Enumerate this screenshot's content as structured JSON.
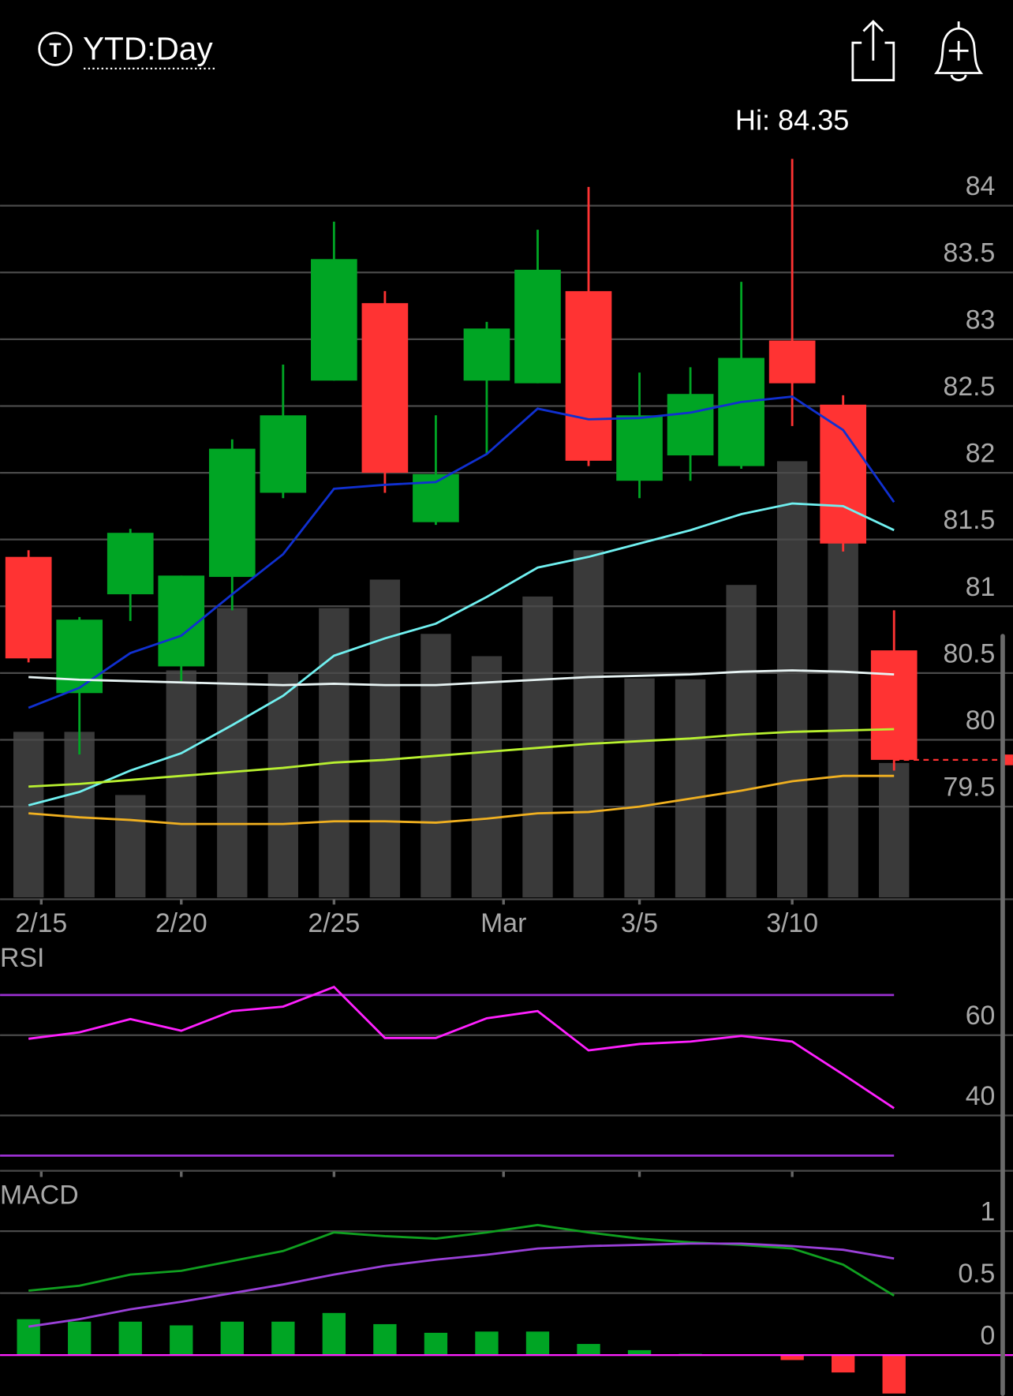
{
  "header": {
    "icon_label": "T",
    "title": "YTD:Day"
  },
  "chart_data": [
    {
      "type": "candlestick",
      "annotation": "Hi: 84.35",
      "up_color": "#00a524",
      "down_color": "#ff3333",
      "open": [
        81.37,
        80.35,
        81.09,
        80.55,
        81.22,
        81.85,
        82.69,
        83.27,
        81.63,
        82.69,
        82.67,
        83.36,
        81.94,
        82.13,
        82.05,
        82.99,
        82.51,
        80.67
      ],
      "high": [
        81.42,
        80.92,
        81.58,
        81.23,
        82.25,
        82.81,
        83.88,
        83.36,
        82.43,
        83.13,
        83.82,
        84.14,
        82.75,
        82.79,
        83.43,
        84.35,
        82.58,
        80.97
      ],
      "low": [
        80.58,
        79.89,
        80.89,
        80.44,
        80.97,
        81.81,
        82.69,
        81.85,
        81.61,
        82.14,
        82.67,
        82.05,
        81.81,
        81.94,
        82.03,
        82.35,
        81.41,
        79.77
      ],
      "close": [
        80.61,
        80.9,
        81.55,
        81.23,
        82.18,
        82.43,
        83.6,
        82.0,
        81.99,
        83.08,
        83.52,
        82.09,
        82.43,
        82.59,
        82.86,
        82.67,
        81.47,
        79.85
      ],
      "volume": [
        186,
        186,
        115,
        255,
        325,
        251,
        325,
        357,
        296,
        271,
        338,
        390,
        246,
        245,
        351,
        490,
        408,
        151
      ],
      "volume_color": "#3a3a3a",
      "moving_averages": [
        {
          "color": "#1030d0",
          "values": [
            80.24,
            80.39,
            80.65,
            80.78,
            81.09,
            81.39,
            81.88,
            81.91,
            81.93,
            82.14,
            82.48,
            82.4,
            82.41,
            82.45,
            82.53,
            82.57,
            82.32,
            81.78
          ]
        },
        {
          "color": "#70f0f0",
          "values": [
            79.51,
            79.61,
            79.77,
            79.9,
            80.11,
            80.33,
            80.63,
            80.76,
            80.87,
            81.07,
            81.29,
            81.37,
            81.47,
            81.57,
            81.69,
            81.77,
            81.75,
            81.57
          ]
        },
        {
          "color": "#e8f4f4",
          "values": [
            80.47,
            80.45,
            80.44,
            80.43,
            80.42,
            80.41,
            80.42,
            80.41,
            80.41,
            80.43,
            80.45,
            80.47,
            80.48,
            80.49,
            80.51,
            80.52,
            80.51,
            80.49
          ]
        },
        {
          "color": "#b8f030",
          "values": [
            79.65,
            79.67,
            79.7,
            79.73,
            79.76,
            79.79,
            79.83,
            79.85,
            79.88,
            79.91,
            79.94,
            79.97,
            79.99,
            80.01,
            80.04,
            80.06,
            80.07,
            80.08
          ]
        },
        {
          "color": "#f0b020",
          "values": [
            79.45,
            79.42,
            79.4,
            79.37,
            79.37,
            79.37,
            79.39,
            79.39,
            79.38,
            79.41,
            79.45,
            79.46,
            79.5,
            79.56,
            79.62,
            79.69,
            79.73,
            79.73
          ]
        }
      ],
      "ylim": [
        78.8,
        84.9
      ],
      "yticks": [
        84,
        83.5,
        83,
        82.5,
        82,
        81.5,
        81,
        80.5,
        80,
        79.5
      ],
      "xticks": [
        {
          "value": 0.25,
          "label": "2/15"
        },
        {
          "value": 3,
          "label": "2/20"
        },
        {
          "value": 6,
          "label": "2/25"
        },
        {
          "value": 9.33,
          "label": "Mar"
        },
        {
          "value": 12,
          "label": "3/5"
        },
        {
          "value": 15,
          "label": "3/10"
        }
      ],
      "grid": true,
      "last_price_line": true
    },
    {
      "type": "rsi",
      "title": "RSI",
      "color": "#ff20ff",
      "band_color": "#9a30d0",
      "overbought": 70,
      "oversold": 30,
      "values": [
        59.1,
        60.7,
        64,
        61.1,
        66,
        67.1,
        72,
        59.3,
        59.3,
        64.2,
        66,
        56.2,
        57.8,
        58.4,
        59.8,
        58.4,
        50.2,
        41.8
      ],
      "ylim": [
        26,
        81
      ],
      "yticks": [
        60,
        40
      ],
      "grid": true
    },
    {
      "type": "macd",
      "title": "MACD",
      "series": [
        {
          "color": "#10a020",
          "values": [
            0.52,
            0.56,
            0.65,
            0.68,
            0.76,
            0.84,
            0.99,
            0.96,
            0.94,
            0.99,
            1.05,
            0.99,
            0.94,
            0.91,
            0.89,
            0.86,
            0.73,
            0.48
          ]
        },
        {
          "color": "#9a40d8",
          "values": [
            0.23,
            0.29,
            0.37,
            0.43,
            0.5,
            0.57,
            0.65,
            0.72,
            0.77,
            0.81,
            0.86,
            0.88,
            0.89,
            0.9,
            0.9,
            0.88,
            0.85,
            0.78
          ]
        }
      ],
      "histogram": [
        0.29,
        0.27,
        0.27,
        0.24,
        0.27,
        0.27,
        0.34,
        0.25,
        0.18,
        0.19,
        0.19,
        0.09,
        0.04,
        0.01,
        0,
        -0.04,
        -0.14,
        -0.31
      ],
      "up_color": "#00a524",
      "down_color": "#ff3333",
      "zero_color": "#ff20ff",
      "ylim": [
        -0.33,
        1.38
      ],
      "yticks": [
        1,
        0.5,
        0
      ],
      "grid": true
    }
  ]
}
